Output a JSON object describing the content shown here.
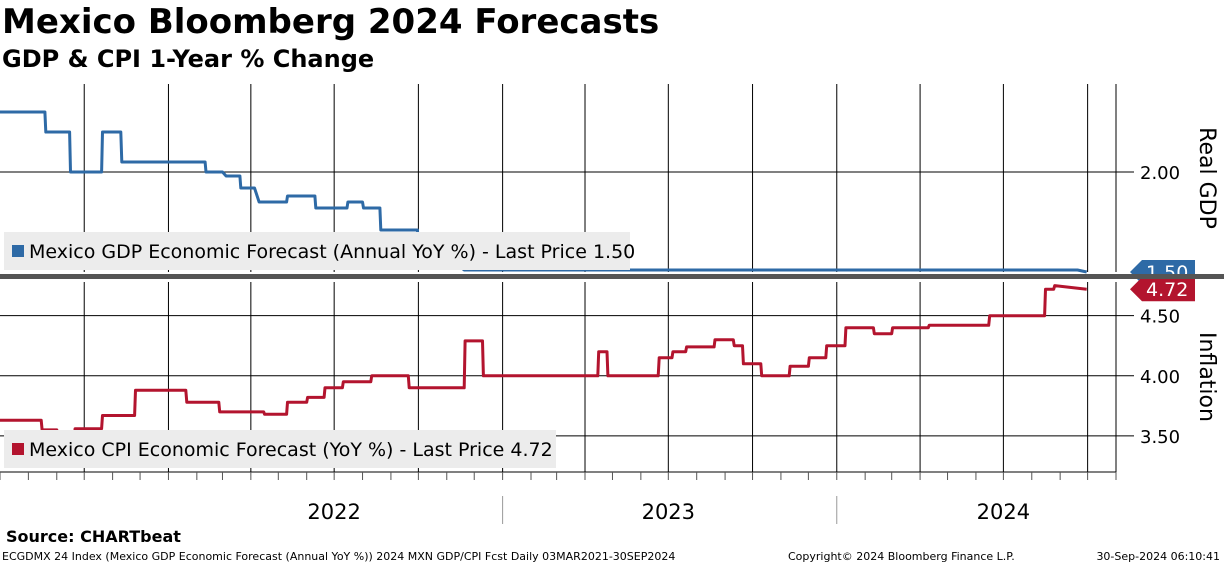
{
  "title": "Mexico Bloomberg 2024 Forecasts",
  "subtitle": "GDP & CPI 1-Year % Change",
  "source": "Source:  CHARTbeat",
  "footer": {
    "left": "ECGDMX 24 Index (Mexico GDP Economic Forecast (Annual YoY %)) 2024 MXN GDP/CPI Fcst  Daily 03MAR2021-30SEP2024",
    "copyright": "Copyright© 2024 Bloomberg Finance L.P.",
    "date": "30-Sep-2024 06:10:41"
  },
  "colors": {
    "gdp": "#2e6aa6",
    "cpi": "#b3142e",
    "grid": "#000000",
    "legend_bg": "#ececec"
  },
  "chart_data": [
    {
      "type": "line",
      "panel": "top",
      "ylabel": "Real GDP",
      "ylim": [
        1.5,
        2.44
      ],
      "ticks": [
        {
          "v": 2.0,
          "label": "2.00"
        }
      ],
      "legend": "Mexico GDP Economic Forecast (Annual YoY %) - Last Price 1.50",
      "last_label": "1.50",
      "last_value": 1.5,
      "series": [
        {
          "x": [
            "2021-07-01",
            "2021-08-19",
            "2021-08-20",
            "2021-09-15",
            "2021-09-16",
            "2021-10-20",
            "2021-10-21",
            "2021-11-10",
            "2021-11-11",
            "2022-02-10",
            "2022-02-11",
            "2022-03-01",
            "2022-03-05",
            "2022-03-20",
            "2022-03-21",
            "2022-04-05",
            "2022-04-10",
            "2022-04-20",
            "2022-05-10",
            "2022-05-11",
            "2022-05-25",
            "2022-06-10",
            "2022-06-11",
            "2022-07-15",
            "2022-07-16",
            "2022-08-01",
            "2022-08-02",
            "2022-08-20",
            "2022-08-21",
            "2022-09-30",
            "2022-10-01",
            "2022-10-25",
            "2022-10-26",
            "2022-11-10",
            "2022-11-20",
            "2022-12-01",
            "2022-12-05",
            "2022-12-20",
            "2023-01-10",
            "2023-01-20",
            "2023-02-01",
            "2023-02-02",
            "2023-02-10",
            "2023-02-15",
            "2023-02-25",
            "2023-03-01",
            "2023-03-05",
            "2023-04-10",
            "2023-04-11",
            "2023-05-15",
            "2023-05-16",
            "2023-07-10",
            "2023-07-11",
            "2023-07-15",
            "2023-07-20",
            "2023-08-01",
            "2023-08-05",
            "2023-08-10",
            "2023-08-11",
            "2023-08-25",
            "2023-08-26",
            "2023-09-20",
            "2023-09-21",
            "2023-10-10",
            "2023-10-11",
            "2023-10-25",
            "2023-10-26",
            "2023-11-05",
            "2023-11-06",
            "2023-11-20",
            "2023-11-21",
            "2023-12-01",
            "2023-12-02",
            "2024-01-10",
            "2024-01-11",
            "2024-02-20",
            "2024-02-21",
            "2024-02-25",
            "2024-03-25",
            "2024-03-26",
            "2024-04-10",
            "2024-04-15",
            "2024-04-25",
            "2024-04-26",
            "2024-05-25",
            "2024-05-26",
            "2024-06-10",
            "2024-06-11",
            "2024-07-15",
            "2024-07-16",
            "2024-08-10",
            "2024-08-11",
            "2024-09-20",
            "2024-09-30"
          ],
          "y": [
            2.3,
            2.3,
            2.2,
            2.2,
            2.0,
            2.0,
            2.2,
            2.2,
            2.05,
            2.05,
            2.0,
            2.0,
            1.98,
            1.98,
            1.92,
            1.92,
            1.85,
            1.85,
            1.85,
            1.88,
            1.88,
            1.88,
            1.82,
            1.82,
            1.85,
            1.85,
            1.82,
            1.82,
            1.71,
            1.71,
            1.58,
            1.58,
            1.55,
            1.55,
            1.51,
            1.51,
            1.51,
            1.51,
            1.51,
            1.51,
            1.51,
            1.51,
            1.51,
            1.51,
            1.51,
            1.51,
            1.51,
            1.51,
            1.51,
            1.51,
            1.51,
            1.51,
            1.51,
            1.51,
            1.51,
            1.51,
            1.51,
            1.51,
            1.51,
            1.51,
            1.51,
            1.51,
            1.51,
            1.51,
            1.51,
            1.51,
            1.51,
            1.51,
            1.51,
            1.51,
            1.51,
            1.51,
            1.51,
            1.51,
            1.51,
            1.51,
            1.51,
            1.51,
            1.51,
            1.51,
            1.51,
            1.51,
            1.51,
            1.51,
            1.51,
            1.51,
            1.51,
            1.51,
            1.51,
            1.51,
            1.51,
            1.51,
            1.51,
            1.5
          ]
        }
      ]
    },
    {
      "type": "line",
      "panel": "bottom",
      "ylabel": "Inflation",
      "ylim": [
        3.2,
        4.78
      ],
      "ticks": [
        {
          "v": 3.5,
          "label": "3.50"
        },
        {
          "v": 4.0,
          "label": "4.00"
        },
        {
          "v": 4.5,
          "label": "4.50"
        }
      ],
      "legend": "Mexico CPI Economic Forecast (YoY %) - Last Price 4.72",
      "last_label": "4.72",
      "last_value": 4.72,
      "series": [
        {
          "x": [
            "2021-07-01",
            "2021-08-15",
            "2021-08-16",
            "2021-09-01",
            "2021-09-02",
            "2021-09-20",
            "2021-09-21",
            "2021-10-20",
            "2021-10-21",
            "2021-11-25",
            "2021-11-26",
            "2022-01-20",
            "2022-01-21",
            "2022-02-25",
            "2022-02-26",
            "2022-03-01",
            "2022-03-05",
            "2022-04-15",
            "2022-04-16",
            "2022-05-10",
            "2022-05-11",
            "2022-06-01",
            "2022-06-02",
            "2022-06-20",
            "2022-06-21",
            "2022-07-10",
            "2022-07-11",
            "2022-08-10",
            "2022-08-11",
            "2022-09-20",
            "2022-09-21",
            "2022-11-20",
            "2022-11-21",
            "2022-12-10",
            "2022-12-11",
            "2023-02-05",
            "2023-02-06",
            "2023-04-15",
            "2023-04-16",
            "2023-04-25",
            "2023-04-26",
            "2023-06-20",
            "2023-06-21",
            "2023-07-05",
            "2023-07-06",
            "2023-07-10",
            "2023-07-11",
            "2023-07-20",
            "2023-07-21",
            "2023-08-20",
            "2023-08-21",
            "2023-09-10",
            "2023-09-11",
            "2023-09-20",
            "2023-09-21",
            "2023-10-10",
            "2023-10-11",
            "2023-11-10",
            "2023-11-11",
            "2023-12-01",
            "2023-12-02",
            "2023-12-20",
            "2023-12-21",
            "2024-01-10",
            "2024-01-11",
            "2024-02-10",
            "2024-02-11",
            "2024-03-01",
            "2024-03-02",
            "2024-04-10",
            "2024-04-11",
            "2024-06-15",
            "2024-06-16",
            "2024-06-30",
            "2024-07-01",
            "2024-08-15",
            "2024-08-16",
            "2024-08-25",
            "2024-08-26",
            "2024-09-30"
          ],
          "y": [
            3.63,
            3.63,
            3.55,
            3.55,
            3.48,
            3.48,
            3.56,
            3.56,
            3.67,
            3.67,
            3.88,
            3.88,
            3.78,
            3.78,
            3.7,
            3.7,
            3.7,
            3.7,
            3.68,
            3.68,
            3.78,
            3.78,
            3.82,
            3.82,
            3.9,
            3.9,
            3.95,
            3.95,
            4.0,
            4.0,
            3.9,
            3.9,
            4.29,
            4.29,
            4.0,
            4.0,
            4.0,
            4.0,
            4.2,
            4.2,
            4.0,
            4.0,
            4.15,
            4.15,
            4.2,
            4.2,
            4.2,
            4.2,
            4.24,
            4.24,
            4.3,
            4.3,
            4.25,
            4.25,
            4.1,
            4.1,
            4.0,
            4.0,
            4.08,
            4.08,
            4.15,
            4.15,
            4.25,
            4.25,
            4.4,
            4.4,
            4.35,
            4.35,
            4.4,
            4.4,
            4.42,
            4.42,
            4.5,
            4.5,
            4.5,
            4.5,
            4.72,
            4.72,
            4.75,
            4.72
          ]
        }
      ]
    }
  ],
  "xaxis": {
    "start": "2021-07-01",
    "end": "2024-11-01",
    "year_labels": [
      {
        "label": "2022",
        "mid": "2022-07-01"
      },
      {
        "label": "2023",
        "mid": "2023-07-01"
      },
      {
        "label": "2024",
        "mid": "2024-07-01"
      }
    ],
    "year_boundaries": [
      "2023-01-01",
      "2024-01-01"
    ],
    "grid": [
      "2021-07-01",
      "2021-10-01",
      "2022-01-01",
      "2022-04-01",
      "2022-07-01",
      "2022-10-01",
      "2023-01-01",
      "2023-04-01",
      "2023-07-01",
      "2023-10-01",
      "2024-01-01",
      "2024-04-01",
      "2024-07-01",
      "2024-10-01"
    ]
  }
}
